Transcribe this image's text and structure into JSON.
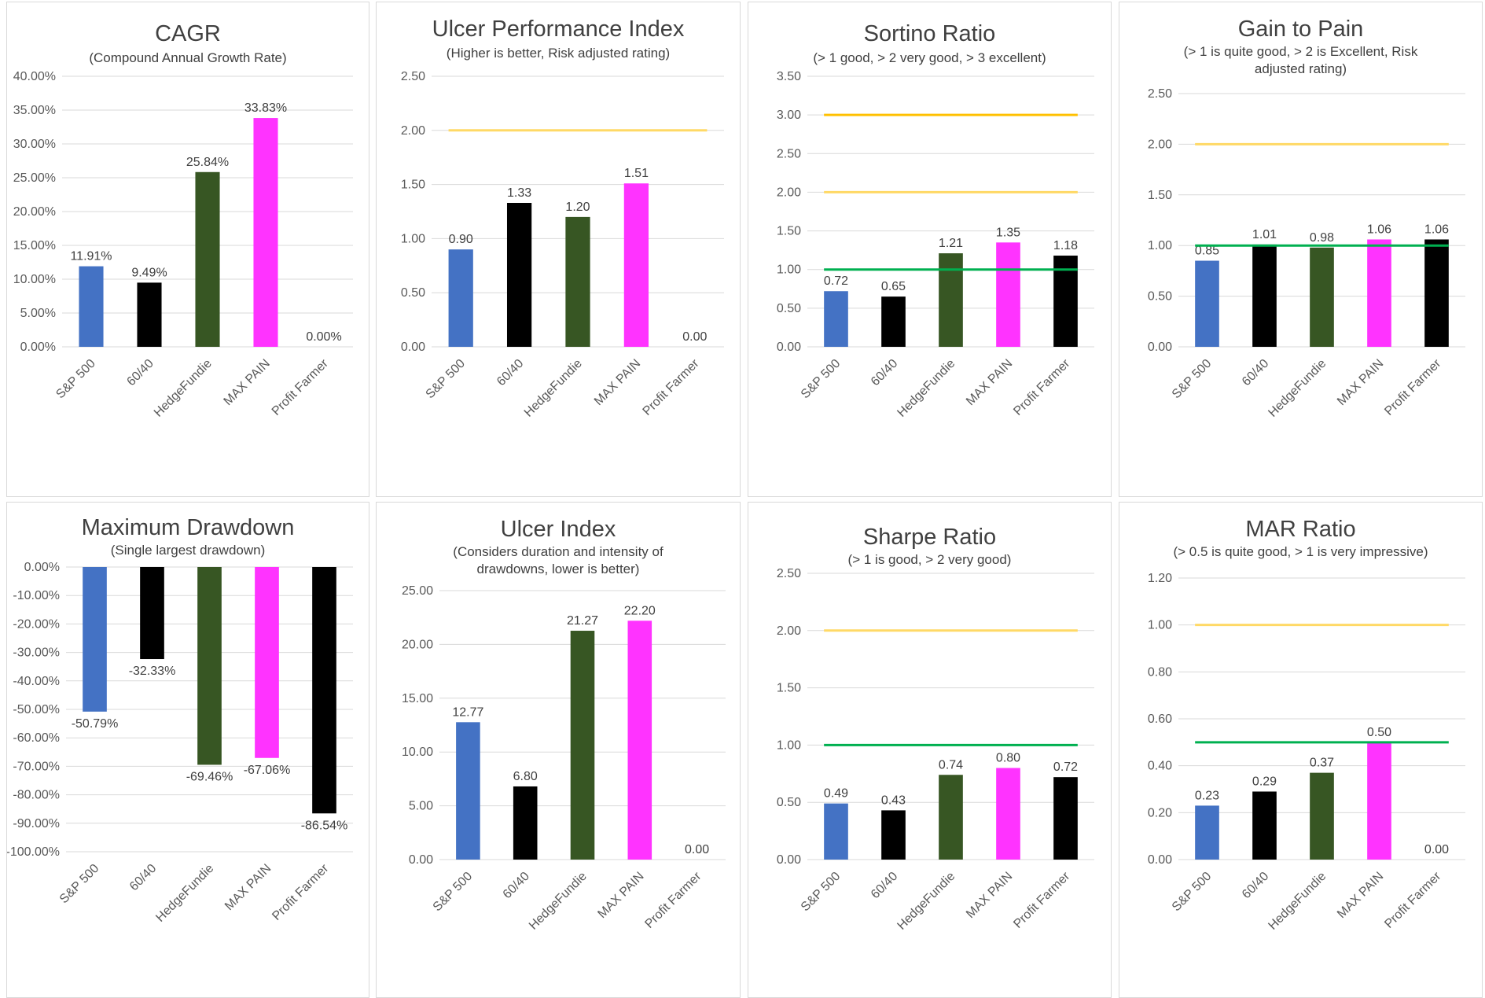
{
  "chart_data": [
    {
      "id": "cagr",
      "type": "bar",
      "title": "CAGR",
      "subtitle": "(Compound  Annual Growth Rate)",
      "categories": [
        "S&P 500",
        "60/40",
        "HedgeFundie",
        "MAX PAIN",
        "Profit Farmer"
      ],
      "values": [
        11.91,
        9.49,
        25.84,
        33.83,
        0.0
      ],
      "labels": [
        "11.91%",
        "9.49%",
        "25.84%",
        "33.83%",
        "0.00%"
      ],
      "colors": [
        "#4472c4",
        "#000000",
        "#375623",
        "#ff33ff",
        "#000000"
      ],
      "yticks": [
        "0.00%",
        "5.00%",
        "10.00%",
        "15.00%",
        "20.00%",
        "25.00%",
        "30.00%",
        "35.00%",
        "40.00%"
      ],
      "ylim": [
        0,
        40
      ],
      "ystep": 5,
      "refs": []
    },
    {
      "id": "upi",
      "type": "bar",
      "title": "Ulcer Performance Index",
      "subtitle": "(Higher is better, Risk adjusted rating)",
      "categories": [
        "S&P 500",
        "60/40",
        "HedgeFundie",
        "MAX PAIN",
        "Profit Farmer"
      ],
      "values": [
        0.9,
        1.33,
        1.2,
        1.51,
        0.0
      ],
      "labels": [
        "0.90",
        "1.33",
        "1.20",
        "1.51",
        "0.00"
      ],
      "colors": [
        "#4472c4",
        "#000000",
        "#375623",
        "#ff33ff",
        "#000000"
      ],
      "yticks": [
        "0.00",
        "0.50",
        "1.00",
        "1.50",
        "2.00",
        "2.50"
      ],
      "ylim": [
        0,
        2.5
      ],
      "ystep": 0.5,
      "refs": [
        {
          "value": 2.0,
          "color": "#ffd966"
        }
      ]
    },
    {
      "id": "sortino",
      "type": "bar",
      "title": "Sortino Ratio",
      "subtitle": "(> 1 good, > 2 very good, > 3 excellent)",
      "categories": [
        "S&P 500",
        "60/40",
        "HedgeFundie",
        "MAX PAIN",
        "Profit Farmer"
      ],
      "values": [
        0.72,
        0.65,
        1.21,
        1.35,
        1.18
      ],
      "labels": [
        "0.72",
        "0.65",
        "1.21",
        "1.35",
        "1.18"
      ],
      "colors": [
        "#4472c4",
        "#000000",
        "#375623",
        "#ff33ff",
        "#000000"
      ],
      "yticks": [
        "0.00",
        "0.50",
        "1.00",
        "1.50",
        "2.00",
        "2.50",
        "3.00",
        "3.50"
      ],
      "ylim": [
        0,
        3.5
      ],
      "ystep": 0.5,
      "refs": [
        {
          "value": 3.0,
          "color": "#ffc000"
        },
        {
          "value": 2.0,
          "color": "#ffd966"
        },
        {
          "value": 1.0,
          "color": "#00b050"
        }
      ]
    },
    {
      "id": "gain-to-pain",
      "type": "bar",
      "title": "Gain to Pain",
      "subtitle": "(> 1 is quite good, > 2 is Excellent, Risk adjusted rating)",
      "categories": [
        "S&P 500",
        "60/40",
        "HedgeFundie",
        "MAX PAIN",
        "Profit Farmer"
      ],
      "values": [
        0.85,
        1.01,
        0.98,
        1.06,
        1.06
      ],
      "labels": [
        "0.85",
        "1.01",
        "0.98",
        "1.06",
        "1.06"
      ],
      "colors": [
        "#4472c4",
        "#000000",
        "#375623",
        "#ff33ff",
        "#000000"
      ],
      "yticks": [
        "0.00",
        "0.50",
        "1.00",
        "1.50",
        "2.00",
        "2.50"
      ],
      "ylim": [
        0,
        2.5
      ],
      "ystep": 0.5,
      "refs": [
        {
          "value": 2.0,
          "color": "#ffd966"
        },
        {
          "value": 1.0,
          "color": "#00b050"
        }
      ]
    },
    {
      "id": "max-drawdown",
      "type": "bar",
      "title": "Maximum Drawdown",
      "subtitle": "(Single largest drawdown)",
      "categories": [
        "S&P 500",
        "60/40",
        "HedgeFundie",
        "MAX PAIN",
        "Profit Farmer"
      ],
      "values": [
        -50.79,
        -32.33,
        -69.46,
        -67.06,
        -86.54
      ],
      "labels": [
        "-50.79%",
        "-32.33%",
        "-69.46%",
        "-67.06%",
        "-86.54%"
      ],
      "colors": [
        "#4472c4",
        "#000000",
        "#375623",
        "#ff33ff",
        "#000000"
      ],
      "yticks": [
        "-100.00%",
        "-90.00%",
        "-80.00%",
        "-70.00%",
        "-60.00%",
        "-50.00%",
        "-40.00%",
        "-30.00%",
        "-20.00%",
        "-10.00%",
        "0.00%"
      ],
      "ylim": [
        -100,
        0
      ],
      "ystep": 10,
      "refs": []
    },
    {
      "id": "ulcer-index",
      "type": "bar",
      "title": "Ulcer Index",
      "subtitle": "(Considers duration and intensity of drawdowns,  lower is better)",
      "categories": [
        "S&P 500",
        "60/40",
        "HedgeFundie",
        "MAX PAIN",
        "Profit Farmer"
      ],
      "values": [
        12.77,
        6.8,
        21.27,
        22.2,
        0.0
      ],
      "labels": [
        "12.77",
        "6.80",
        "21.27",
        "22.20",
        "0.00"
      ],
      "colors": [
        "#4472c4",
        "#000000",
        "#375623",
        "#ff33ff",
        "#000000"
      ],
      "yticks": [
        "0.00",
        "5.00",
        "10.00",
        "15.00",
        "20.00",
        "25.00"
      ],
      "ylim": [
        0,
        25
      ],
      "ystep": 5,
      "refs": []
    },
    {
      "id": "sharpe",
      "type": "bar",
      "title": "Sharpe Ratio",
      "subtitle": "(> 1 is good, > 2 very good)",
      "categories": [
        "S&P 500",
        "60/40",
        "HedgeFundie",
        "MAX PAIN",
        "Profit Farmer"
      ],
      "values": [
        0.49,
        0.43,
        0.74,
        0.8,
        0.72
      ],
      "labels": [
        "0.49",
        "0.43",
        "0.74",
        "0.80",
        "0.72"
      ],
      "colors": [
        "#4472c4",
        "#000000",
        "#375623",
        "#ff33ff",
        "#000000"
      ],
      "yticks": [
        "0.00",
        "0.50",
        "1.00",
        "1.50",
        "2.00",
        "2.50"
      ],
      "ylim": [
        0,
        2.5
      ],
      "ystep": 0.5,
      "refs": [
        {
          "value": 2.0,
          "color": "#ffd966"
        },
        {
          "value": 1.0,
          "color": "#00b050"
        }
      ]
    },
    {
      "id": "mar",
      "type": "bar",
      "title": "MAR Ratio",
      "subtitle": "(> 0.5 is quite good, > 1 is very impressive)",
      "categories": [
        "S&P 500",
        "60/40",
        "HedgeFundie",
        "MAX PAIN",
        "Profit Farmer"
      ],
      "values": [
        0.23,
        0.29,
        0.37,
        0.5,
        0.0
      ],
      "labels": [
        "0.23",
        "0.29",
        "0.37",
        "0.50",
        "0.00"
      ],
      "colors": [
        "#4472c4",
        "#000000",
        "#375623",
        "#ff33ff",
        "#000000"
      ],
      "yticks": [
        "0.00",
        "0.20",
        "0.40",
        "0.60",
        "0.80",
        "1.00",
        "1.20"
      ],
      "ylim": [
        0,
        1.2
      ],
      "ystep": 0.2,
      "refs": [
        {
          "value": 1.0,
          "color": "#ffd966"
        },
        {
          "value": 0.5,
          "color": "#00b050"
        }
      ]
    }
  ]
}
